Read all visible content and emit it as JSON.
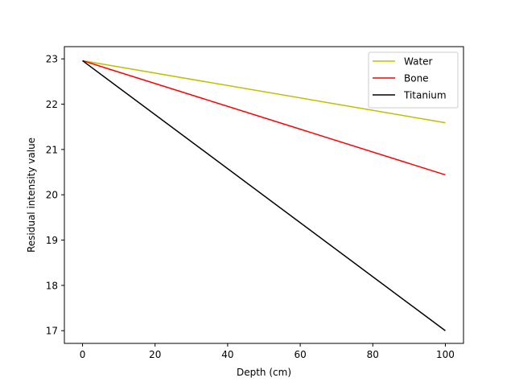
{
  "chart_data": {
    "type": "line",
    "xlabel": "Depth (cm)",
    "ylabel": "Residual intensity value",
    "xlim": [
      -5,
      105
    ],
    "ylim": [
      16.72,
      23.27
    ],
    "xticks": [
      0,
      20,
      40,
      60,
      80,
      100
    ],
    "yticks": [
      17,
      18,
      19,
      20,
      21,
      22,
      23
    ],
    "grid": false,
    "legend_position": "top-right",
    "series": [
      {
        "name": "Water",
        "color": "#bfbf00",
        "x": [
          0,
          100
        ],
        "y": [
          22.96,
          21.59
        ]
      },
      {
        "name": "Bone",
        "color": "#ff0000",
        "x": [
          0,
          100
        ],
        "y": [
          22.96,
          20.44
        ]
      },
      {
        "name": "Titanium",
        "color": "#000000",
        "x": [
          0,
          100
        ],
        "y": [
          22.96,
          17.0
        ]
      }
    ]
  }
}
